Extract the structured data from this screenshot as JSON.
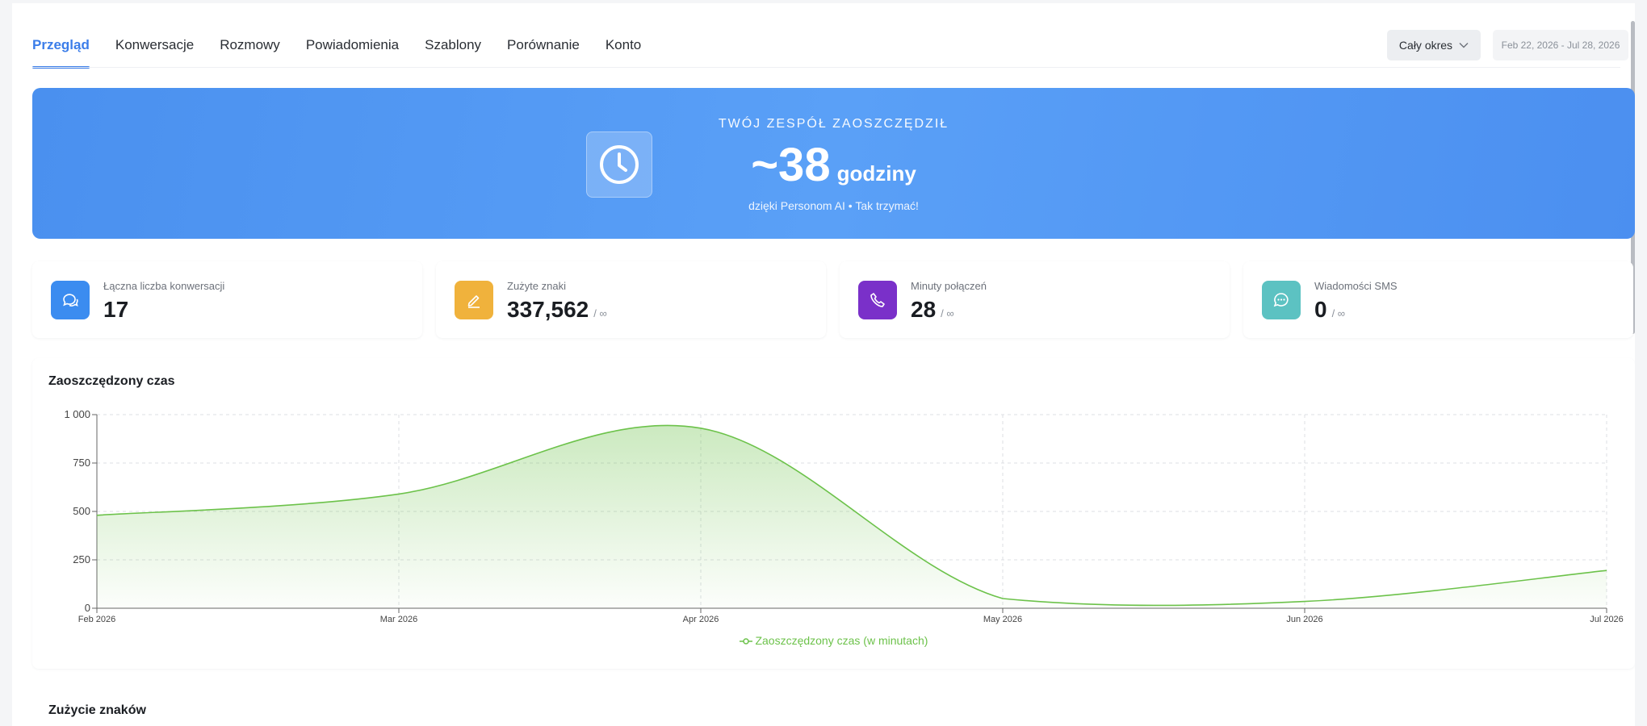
{
  "nav": {
    "tabs": [
      {
        "label": "Przegląd",
        "active": true
      },
      {
        "label": "Konwersacje",
        "active": false
      },
      {
        "label": "Rozmowy",
        "active": false
      },
      {
        "label": "Powiadomienia",
        "active": false
      },
      {
        "label": "Szablony",
        "active": false
      },
      {
        "label": "Porównanie",
        "active": false
      },
      {
        "label": "Konto",
        "active": false
      }
    ],
    "period_select": "Cały okres",
    "date_range": "Feb 22, 2026 - Jul 28, 2026"
  },
  "banner": {
    "eyebrow": "TWÓJ ZESPÓŁ ZAOSZCZĘDZIŁ",
    "value": "~38",
    "unit": "godziny",
    "subtitle": "dzięki Personom AI • Tak trzymać!",
    "icon": "clock-icon"
  },
  "stats": [
    {
      "label": "Łączna liczba konwersacji",
      "value": "17",
      "limit": "",
      "icon": "chat-bubbles-icon",
      "color": "#3b8cf0"
    },
    {
      "label": "Zużyte znaki",
      "value": "337,562",
      "limit": "/ ∞",
      "icon": "pencil-icon",
      "color": "#f0b23c"
    },
    {
      "label": "Minuty połączeń",
      "value": "28",
      "limit": "/ ∞",
      "icon": "phone-icon",
      "color": "#7a30c9"
    },
    {
      "label": "Wiadomości SMS",
      "value": "0",
      "limit": "/ ∞",
      "icon": "message-dots-icon",
      "color": "#5cc2c2"
    }
  ],
  "chart": {
    "title": "Zaoszczędzony czas",
    "legend": "Zaoszczędzony czas (w minutach)"
  },
  "chart_data": {
    "type": "area",
    "title": "Zaoszczędzony czas",
    "x": [
      "Feb 2026",
      "Mar 2026",
      "Apr 2026",
      "May 2026",
      "Jun 2026",
      "Jul 2026"
    ],
    "series": [
      {
        "name": "Zaoszczędzony czas (w minutach)",
        "values": [
          480,
          590,
          930,
          50,
          35,
          195
        ],
        "color": "#6cc24a"
      }
    ],
    "yticks": [
      "0",
      "250",
      "500",
      "750",
      "1 000"
    ],
    "ylim": [
      0,
      1000
    ],
    "grid": true,
    "legend": "bottom-center"
  },
  "section2": {
    "title": "Zużycie znaków"
  }
}
